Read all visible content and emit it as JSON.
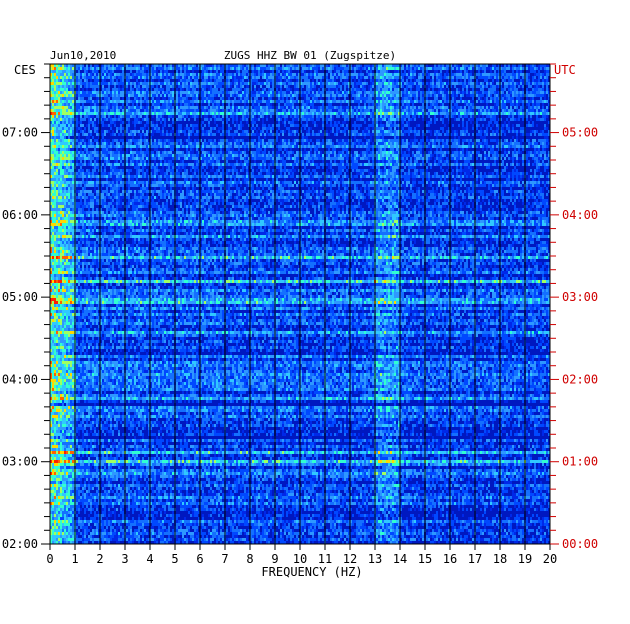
{
  "chart_data": {
    "type": "heatmap",
    "title": "ZUGS HHZ BW 01 (Zugspitze)",
    "date": "Jun10,2010",
    "xlabel": "FREQUENCY (HZ)",
    "xlim": [
      0,
      20
    ],
    "x_ticks": [
      "0",
      "1",
      "2",
      "3",
      "4",
      "5",
      "6",
      "7",
      "8",
      "9",
      "10",
      "11",
      "12",
      "13",
      "14",
      "15",
      "16",
      "17",
      "18",
      "19",
      "20"
    ],
    "left_axis_label": "CES",
    "right_axis_label": "UTC",
    "left_ticks": [
      "07:00",
      "06:00",
      "05:00",
      "04:00",
      "03:00",
      "02:00"
    ],
    "right_ticks": [
      "05:00",
      "04:00",
      "03:00",
      "02:00",
      "01:00",
      "00:00"
    ],
    "time_range_ces": [
      "02:00",
      "07:50"
    ],
    "colors": {
      "axis": "#000000",
      "utc": "#d00000",
      "low": "#0000a0",
      "mid": "#1e78ff",
      "high": "#30ffd0",
      "peak": "#ff2000"
    },
    "features": [
      {
        "note": "energy concentrated at 0-1 Hz across all times"
      },
      {
        "note": "band of elevated energy near 13-14 Hz"
      }
    ]
  }
}
